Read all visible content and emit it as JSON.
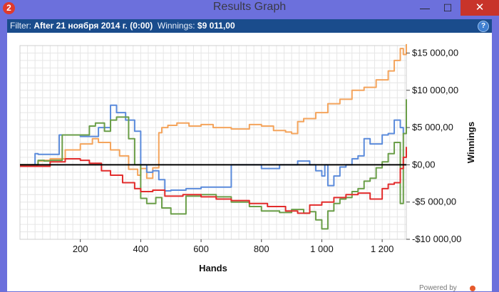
{
  "window": {
    "app_icon_text": "2",
    "title": "Results Graph",
    "minimize": "—",
    "maximize": "☐",
    "close": "✕"
  },
  "filter": {
    "filter_label": "Filter:",
    "filter_value": "After 21 ноября 2014 г. (0:00)",
    "winnings_label": "Winnings:",
    "winnings_value": "$9 011,00",
    "help": "?"
  },
  "footer": {
    "powered_text": "Powered by"
  },
  "chart_data": {
    "type": "line",
    "xlabel": "Hands",
    "ylabel": "Winnings",
    "xlim": [
      0,
      1280
    ],
    "ylim": [
      -10000,
      16000
    ],
    "x_ticks": [
      200,
      400,
      600,
      800,
      1000,
      1200
    ],
    "x_tick_labels": [
      "200",
      "400",
      "600",
      "800",
      "1 000",
      "1 200"
    ],
    "y_ticks": [
      15000,
      10000,
      5000,
      0,
      -5000,
      -10000
    ],
    "y_tick_labels": [
      "$15 000,00",
      "$10 000,00",
      "$5 000,00",
      "$0,00",
      "-$5 000,00",
      "-$10 000,00"
    ],
    "grid": true,
    "zero_line": true,
    "series": [
      {
        "color": "#f4a45c",
        "x": [
          0,
          40,
          60,
          80,
          100,
          150,
          200,
          240,
          260,
          300,
          330,
          360,
          390,
          400,
          420,
          440,
          460,
          470,
          490,
          520,
          560,
          600,
          640,
          700,
          760,
          800,
          840,
          880,
          900,
          920,
          940,
          980,
          1020,
          1060,
          1100,
          1140,
          1180,
          1220,
          1240,
          1260,
          1270,
          1280
        ],
        "y": [
          0,
          0,
          500,
          600,
          800,
          2000,
          2800,
          3500,
          3000,
          2000,
          1200,
          -600,
          -1400,
          -500,
          -1800,
          -400,
          4300,
          5000,
          5300,
          5600,
          5200,
          5400,
          5000,
          4800,
          5400,
          5200,
          4600,
          4400,
          4200,
          5800,
          6200,
          7000,
          8200,
          8800,
          10000,
          10400,
          11400,
          12600,
          14000,
          15600,
          14800,
          16200
        ]
      },
      {
        "color": "#5b8bdb",
        "x": [
          0,
          40,
          50,
          60,
          80,
          130,
          150,
          200,
          230,
          260,
          300,
          320,
          350,
          380,
          400,
          420,
          440,
          460,
          480,
          500,
          550,
          600,
          700,
          750,
          800,
          860,
          920,
          960,
          980,
          1000,
          1010,
          1020,
          1040,
          1060,
          1080,
          1100,
          1120,
          1140,
          1160,
          1200,
          1220,
          1240,
          1260,
          1270,
          1280
        ],
        "y": [
          -200,
          0,
          1500,
          1400,
          1400,
          4000,
          4000,
          3800,
          3800,
          5000,
          8000,
          7000,
          6000,
          4500,
          0,
          -1000,
          -800,
          -2000,
          -3500,
          -3400,
          -3200,
          -3000,
          0,
          0,
          -500,
          0,
          500,
          0,
          -800,
          -1500,
          0,
          -2800,
          -1500,
          -300,
          0,
          800,
          1200,
          3500,
          2800,
          4000,
          4200,
          6000,
          5000,
          4200,
          7200
        ]
      },
      {
        "color": "#6a9e48",
        "x": [
          0,
          40,
          60,
          80,
          100,
          140,
          200,
          230,
          250,
          280,
          300,
          320,
          360,
          380,
          400,
          420,
          450,
          470,
          500,
          550,
          600,
          650,
          700,
          760,
          800,
          860,
          900,
          940,
          960,
          980,
          1000,
          1020,
          1040,
          1060,
          1080,
          1100,
          1120,
          1140,
          1160,
          1180,
          1200,
          1220,
          1240,
          1260,
          1270,
          1280
        ],
        "y": [
          0,
          0,
          600,
          500,
          600,
          4000,
          4000,
          5200,
          5600,
          4500,
          6000,
          6400,
          3500,
          0,
          -4500,
          -5200,
          -4400,
          -5800,
          -6600,
          -4200,
          -4000,
          -4300,
          -5000,
          -5600,
          -6200,
          -6400,
          -6000,
          -6500,
          -6300,
          -7400,
          -8600,
          -6200,
          -5200,
          -4600,
          -4400,
          -3600,
          -3200,
          -2200,
          -1800,
          -400,
          400,
          1500,
          3000,
          -5200,
          4200,
          8800
        ]
      },
      {
        "color": "#e22c2c",
        "x": [
          0,
          50,
          100,
          150,
          200,
          230,
          270,
          300,
          340,
          380,
          400,
          440,
          480,
          540,
          600,
          650,
          700,
          760,
          820,
          880,
          920,
          960,
          1000,
          1040,
          1080,
          1120,
          1160,
          1200,
          1220,
          1240,
          1260,
          1270,
          1280
        ],
        "y": [
          -200,
          -200,
          400,
          800,
          600,
          200,
          -800,
          -1400,
          -2400,
          -3200,
          -3600,
          -3400,
          -4200,
          -4000,
          -4300,
          -4600,
          -4800,
          -5200,
          -5600,
          -6200,
          -6500,
          -5400,
          -5000,
          -4400,
          -4000,
          -3800,
          -4600,
          -3200,
          -2600,
          -2400,
          -500,
          1000,
          2400
        ]
      }
    ]
  }
}
